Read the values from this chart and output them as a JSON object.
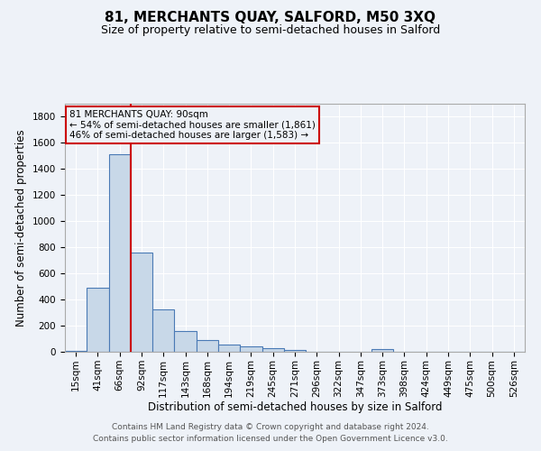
{
  "title": "81, MERCHANTS QUAY, SALFORD, M50 3XQ",
  "subtitle": "Size of property relative to semi-detached houses in Salford",
  "xlabel": "Distribution of semi-detached houses by size in Salford",
  "ylabel": "Number of semi-detached properties",
  "footer1": "Contains HM Land Registry data © Crown copyright and database right 2024.",
  "footer2": "Contains public sector information licensed under the Open Government Licence v3.0.",
  "bar_labels": [
    "15sqm",
    "41sqm",
    "66sqm",
    "92sqm",
    "117sqm",
    "143sqm",
    "168sqm",
    "194sqm",
    "219sqm",
    "245sqm",
    "271sqm",
    "296sqm",
    "322sqm",
    "347sqm",
    "373sqm",
    "398sqm",
    "424sqm",
    "449sqm",
    "475sqm",
    "500sqm",
    "526sqm"
  ],
  "bar_values": [
    10,
    490,
    1510,
    760,
    325,
    160,
    88,
    55,
    40,
    25,
    15,
    0,
    0,
    0,
    20,
    0,
    0,
    0,
    0,
    0,
    0
  ],
  "bar_color": "#c8d8e8",
  "bar_edge_color": "#4a7ab5",
  "property_line_color": "#cc0000",
  "annotation_text": "81 MERCHANTS QUAY: 90sqm\n← 54% of semi-detached houses are smaller (1,861)\n46% of semi-detached houses are larger (1,583) →",
  "annotation_box_color": "#cc0000",
  "ylim": [
    0,
    1900
  ],
  "yticks": [
    0,
    200,
    400,
    600,
    800,
    1000,
    1200,
    1400,
    1600,
    1800
  ],
  "bg_color": "#eef2f8",
  "grid_color": "#ffffff",
  "title_fontsize": 11,
  "subtitle_fontsize": 9,
  "axis_label_fontsize": 8.5,
  "tick_fontsize": 7.5,
  "annotation_fontsize": 7.5,
  "footer_fontsize": 6.5
}
